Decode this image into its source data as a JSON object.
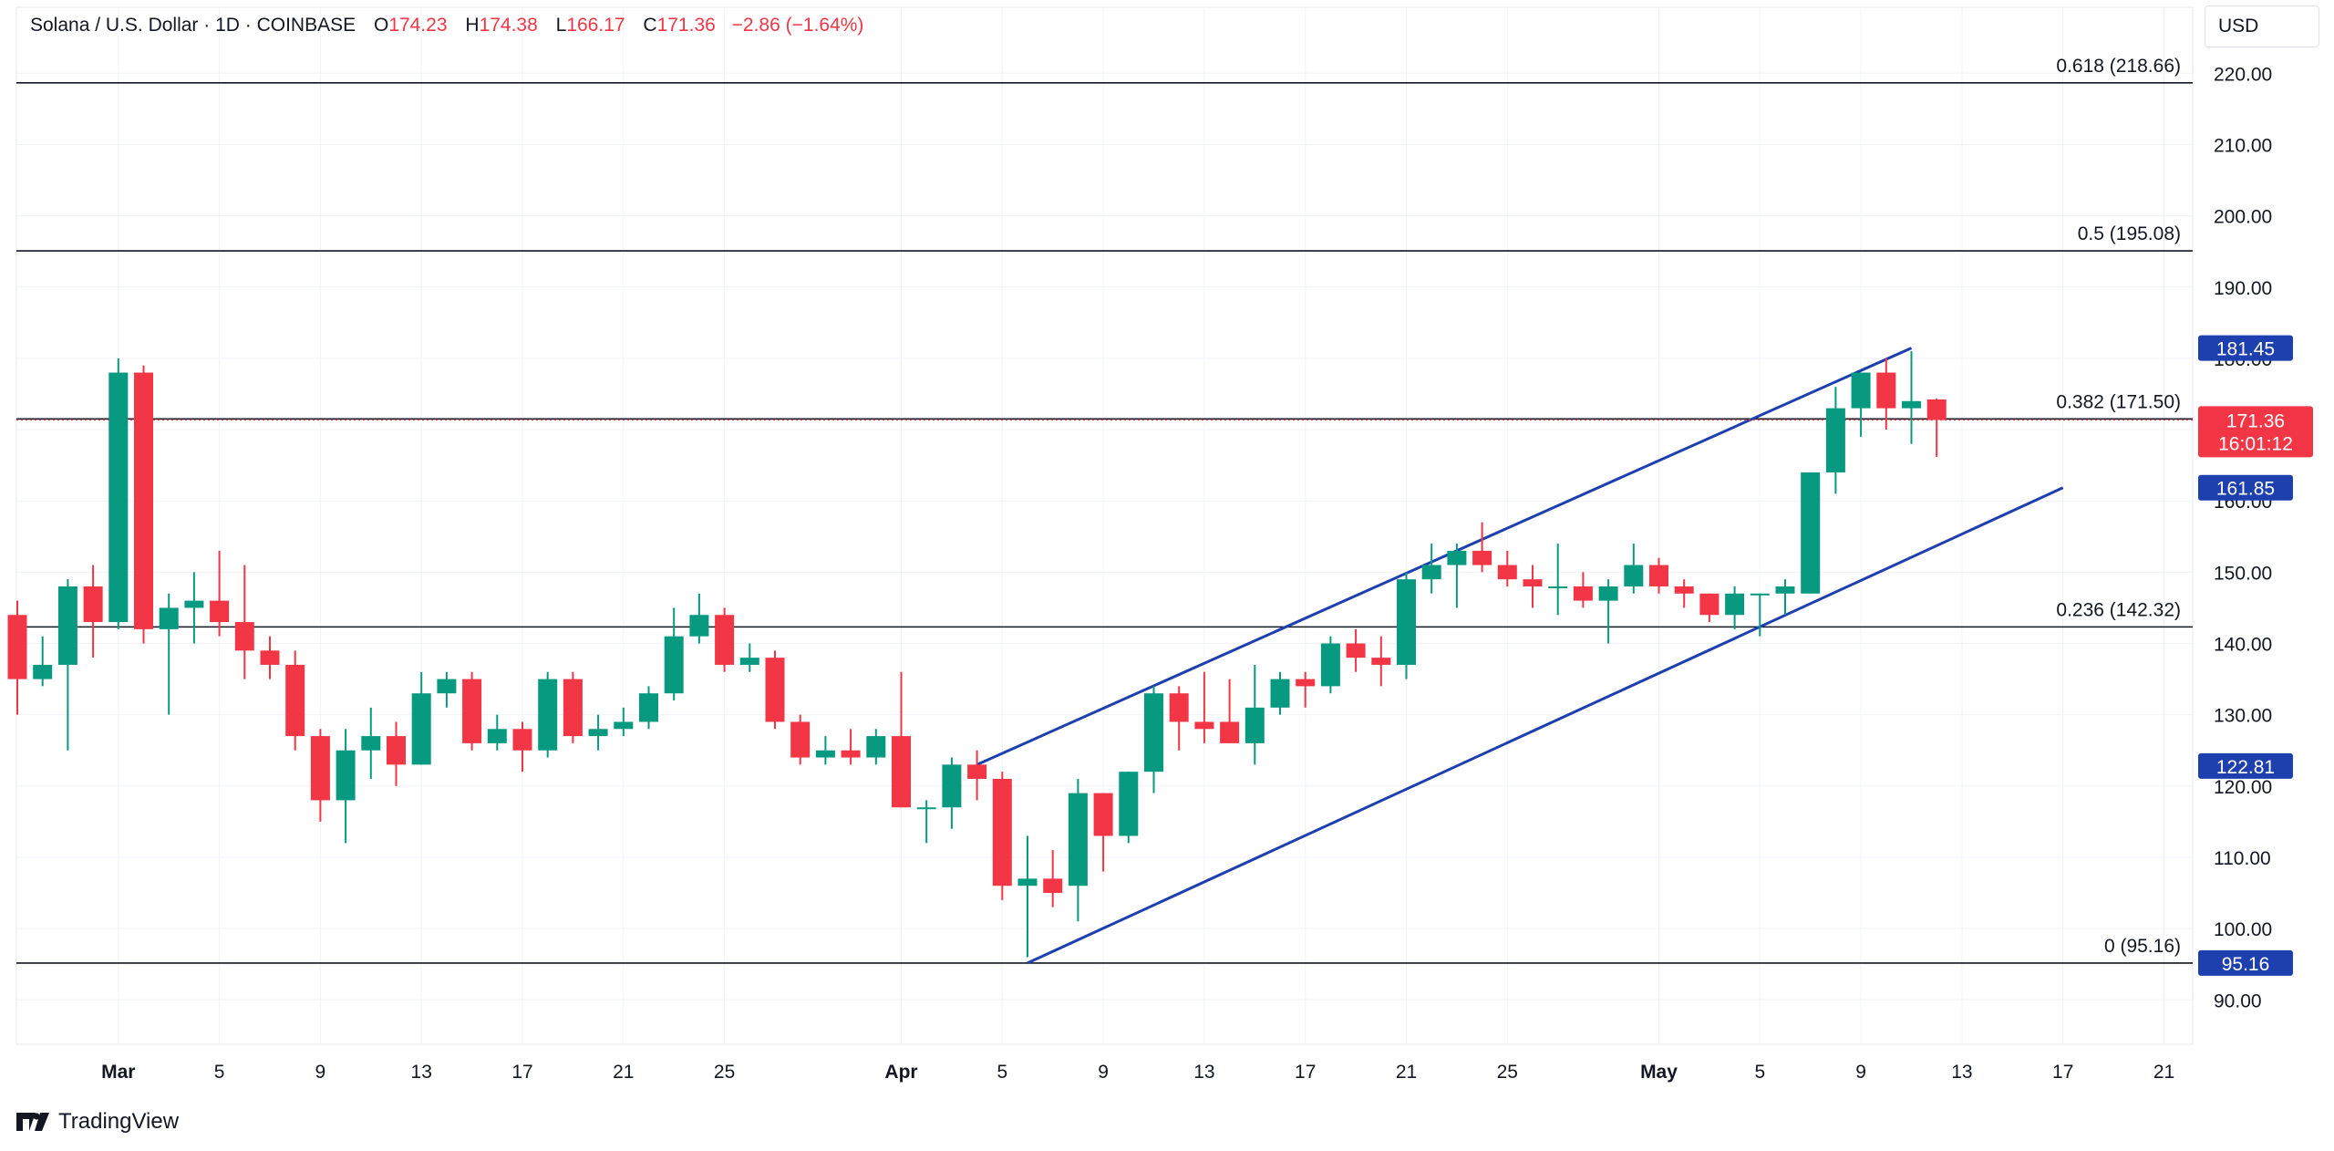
{
  "header": {
    "symbol": "Solana / U.S. Dollar · 1D · COINBASE",
    "open_label": "O",
    "open": "174.23",
    "high_label": "H",
    "high": "174.38",
    "low_label": "L",
    "low": "166.17",
    "close_label": "C",
    "close": "171.36",
    "change": "−2.86 (−1.64%)"
  },
  "currency": "USD",
  "brand": "TradingView",
  "colors": {
    "up": "#089981",
    "down": "#f23645",
    "channel": "#1e40af",
    "badge_blue": "#1e40af",
    "badge_red": "#f23645"
  },
  "chart_data": {
    "type": "candlestick",
    "ylim": [
      85,
      225
    ],
    "yticks": [
      90,
      100,
      110,
      120,
      130,
      140,
      150,
      160,
      170,
      180,
      190,
      200,
      210,
      220
    ],
    "xlim": [
      "2024-02-26",
      "2024-05-25"
    ],
    "xticks": [
      {
        "date": "2024-03-01",
        "label": "Mar",
        "bold": true
      },
      {
        "date": "2024-03-05",
        "label": "5"
      },
      {
        "date": "2024-03-09",
        "label": "9"
      },
      {
        "date": "2024-03-13",
        "label": "13"
      },
      {
        "date": "2024-03-17",
        "label": "17"
      },
      {
        "date": "2024-03-21",
        "label": "21"
      },
      {
        "date": "2024-03-25",
        "label": "25"
      },
      {
        "date": "2024-04-01",
        "label": "Apr",
        "bold": true
      },
      {
        "date": "2024-04-05",
        "label": "5"
      },
      {
        "date": "2024-04-09",
        "label": "9"
      },
      {
        "date": "2024-04-13",
        "label": "13"
      },
      {
        "date": "2024-04-17",
        "label": "17"
      },
      {
        "date": "2024-04-21",
        "label": "21"
      },
      {
        "date": "2024-04-25",
        "label": "25"
      },
      {
        "date": "2024-05-01",
        "label": "May",
        "bold": true
      },
      {
        "date": "2024-05-05",
        "label": "5"
      },
      {
        "date": "2024-05-09",
        "label": "9"
      },
      {
        "date": "2024-05-13",
        "label": "13"
      },
      {
        "date": "2024-05-17",
        "label": "17"
      },
      {
        "date": "2024-05-21",
        "label": "21"
      }
    ],
    "candles": [
      {
        "date": "2024-02-26",
        "open": 144,
        "high": 146,
        "low": 130,
        "close": 135
      },
      {
        "date": "2024-02-27",
        "open": 135,
        "high": 141,
        "low": 134,
        "close": 137
      },
      {
        "date": "2024-02-28",
        "open": 137,
        "high": 149,
        "low": 125,
        "close": 148
      },
      {
        "date": "2024-02-29",
        "open": 148,
        "high": 151,
        "low": 138,
        "close": 143
      },
      {
        "date": "2024-03-01",
        "open": 143,
        "high": 180,
        "low": 142,
        "close": 178
      },
      {
        "date": "2024-03-02",
        "open": 178,
        "high": 179,
        "low": 140,
        "close": 142
      },
      {
        "date": "2024-03-03",
        "open": 142,
        "high": 147,
        "low": 130,
        "close": 145
      },
      {
        "date": "2024-03-04",
        "open": 145,
        "high": 150,
        "low": 140,
        "close": 146
      },
      {
        "date": "2024-03-05",
        "open": 146,
        "high": 153,
        "low": 141,
        "close": 143
      },
      {
        "date": "2024-03-06",
        "open": 143,
        "high": 151,
        "low": 135,
        "close": 139
      },
      {
        "date": "2024-03-07",
        "open": 139,
        "high": 141,
        "low": 135,
        "close": 137
      },
      {
        "date": "2024-03-08",
        "open": 137,
        "high": 139,
        "low": 125,
        "close": 127
      },
      {
        "date": "2024-03-09",
        "open": 127,
        "high": 128,
        "low": 115,
        "close": 118
      },
      {
        "date": "2024-03-10",
        "open": 118,
        "high": 128,
        "low": 112,
        "close": 125
      },
      {
        "date": "2024-03-11",
        "open": 125,
        "high": 131,
        "low": 121,
        "close": 127
      },
      {
        "date": "2024-03-12",
        "open": 127,
        "high": 129,
        "low": 120,
        "close": 123
      },
      {
        "date": "2024-03-13",
        "open": 123,
        "high": 136,
        "low": 123,
        "close": 133
      },
      {
        "date": "2024-03-14",
        "open": 133,
        "high": 136,
        "low": 131,
        "close": 135
      },
      {
        "date": "2024-03-15",
        "open": 135,
        "high": 136,
        "low": 125,
        "close": 126
      },
      {
        "date": "2024-03-16",
        "open": 126,
        "high": 130,
        "low": 125,
        "close": 128
      },
      {
        "date": "2024-03-17",
        "open": 128,
        "high": 129,
        "low": 122,
        "close": 125
      },
      {
        "date": "2024-03-18",
        "open": 125,
        "high": 136,
        "low": 124,
        "close": 135
      },
      {
        "date": "2024-03-19",
        "open": 135,
        "high": 136,
        "low": 126,
        "close": 127
      },
      {
        "date": "2024-03-20",
        "open": 127,
        "high": 130,
        "low": 125,
        "close": 128
      },
      {
        "date": "2024-03-21",
        "open": 128,
        "high": 131,
        "low": 127,
        "close": 129
      },
      {
        "date": "2024-03-22",
        "open": 129,
        "high": 134,
        "low": 128,
        "close": 133
      },
      {
        "date": "2024-03-23",
        "open": 133,
        "high": 145,
        "low": 132,
        "close": 141
      },
      {
        "date": "2024-03-24",
        "open": 141,
        "high": 147,
        "low": 140,
        "close": 144
      },
      {
        "date": "2024-03-25",
        "open": 144,
        "high": 145,
        "low": 136,
        "close": 137
      },
      {
        "date": "2024-03-26",
        "open": 137,
        "high": 140,
        "low": 136,
        "close": 138
      },
      {
        "date": "2024-03-27",
        "open": 138,
        "high": 139,
        "low": 128,
        "close": 129
      },
      {
        "date": "2024-03-28",
        "open": 129,
        "high": 130,
        "low": 123,
        "close": 124
      },
      {
        "date": "2024-03-29",
        "open": 124,
        "high": 127,
        "low": 123,
        "close": 125
      },
      {
        "date": "2024-03-30",
        "open": 125,
        "high": 128,
        "low": 123,
        "close": 124
      },
      {
        "date": "2024-03-31",
        "open": 124,
        "high": 128,
        "low": 123,
        "close": 127
      },
      {
        "date": "2024-04-01",
        "open": 127,
        "high": 136,
        "low": 117,
        "close": 117
      },
      {
        "date": "2024-04-02",
        "open": 117,
        "high": 118,
        "low": 112,
        "close": 117
      },
      {
        "date": "2024-04-03",
        "open": 117,
        "high": 124,
        "low": 114,
        "close": 123
      },
      {
        "date": "2024-04-04",
        "open": 123,
        "high": 125,
        "low": 118,
        "close": 121
      },
      {
        "date": "2024-04-05",
        "open": 121,
        "high": 122,
        "low": 104,
        "close": 106
      },
      {
        "date": "2024-04-06",
        "open": 106,
        "high": 113,
        "low": 96,
        "close": 107
      },
      {
        "date": "2024-04-07",
        "open": 107,
        "high": 111,
        "low": 103,
        "close": 105
      },
      {
        "date": "2024-04-08",
        "open": 106,
        "high": 121,
        "low": 101,
        "close": 119
      },
      {
        "date": "2024-04-09",
        "open": 119,
        "high": 119,
        "low": 108,
        "close": 113
      },
      {
        "date": "2024-04-10",
        "open": 113,
        "high": 122,
        "low": 112,
        "close": 122
      },
      {
        "date": "2024-04-11",
        "open": 122,
        "high": 134,
        "low": 119,
        "close": 133
      },
      {
        "date": "2024-04-12",
        "open": 133,
        "high": 134,
        "low": 125,
        "close": 129
      },
      {
        "date": "2024-04-13",
        "open": 129,
        "high": 136,
        "low": 126,
        "close": 128
      },
      {
        "date": "2024-04-14",
        "open": 129,
        "high": 135,
        "low": 126,
        "close": 126
      },
      {
        "date": "2024-04-15",
        "open": 126,
        "high": 137,
        "low": 123,
        "close": 131
      },
      {
        "date": "2024-04-16",
        "open": 131,
        "high": 136,
        "low": 130,
        "close": 135
      },
      {
        "date": "2024-04-17",
        "open": 135,
        "high": 136,
        "low": 131,
        "close": 134
      },
      {
        "date": "2024-04-18",
        "open": 134,
        "high": 141,
        "low": 133,
        "close": 140
      },
      {
        "date": "2024-04-19",
        "open": 140,
        "high": 142,
        "low": 136,
        "close": 138
      },
      {
        "date": "2024-04-20",
        "open": 138,
        "high": 141,
        "low": 134,
        "close": 137
      },
      {
        "date": "2024-04-21",
        "open": 137,
        "high": 150,
        "low": 135,
        "close": 149
      },
      {
        "date": "2024-04-22",
        "open": 149,
        "high": 154,
        "low": 147,
        "close": 151
      },
      {
        "date": "2024-04-23",
        "open": 151,
        "high": 154,
        "low": 145,
        "close": 153
      },
      {
        "date": "2024-04-24",
        "open": 153,
        "high": 157,
        "low": 150,
        "close": 151
      },
      {
        "date": "2024-04-25",
        "open": 151,
        "high": 153,
        "low": 148,
        "close": 149
      },
      {
        "date": "2024-04-26",
        "open": 149,
        "high": 151,
        "low": 145,
        "close": 148
      },
      {
        "date": "2024-04-27",
        "open": 148,
        "high": 154,
        "low": 144,
        "close": 148
      },
      {
        "date": "2024-04-28",
        "open": 148,
        "high": 150,
        "low": 145,
        "close": 146
      },
      {
        "date": "2024-04-29",
        "open": 146,
        "high": 149,
        "low": 140,
        "close": 148
      },
      {
        "date": "2024-04-30",
        "open": 148,
        "high": 154,
        "low": 147,
        "close": 151
      },
      {
        "date": "2024-05-01",
        "open": 151,
        "high": 152,
        "low": 147,
        "close": 148
      },
      {
        "date": "2024-05-02",
        "open": 148,
        "high": 149,
        "low": 145,
        "close": 147
      },
      {
        "date": "2024-05-03",
        "open": 147,
        "high": 147,
        "low": 143,
        "close": 144
      },
      {
        "date": "2024-05-04",
        "open": 144,
        "high": 148,
        "low": 142,
        "close": 147
      },
      {
        "date": "2024-05-05",
        "open": 147,
        "high": 147,
        "low": 141,
        "close": 147
      },
      {
        "date": "2024-05-06",
        "open": 147,
        "high": 149,
        "low": 144,
        "close": 148
      },
      {
        "date": "2024-05-07",
        "open": 147,
        "high": 164,
        "low": 147,
        "close": 164
      },
      {
        "date": "2024-05-08",
        "open": 164,
        "high": 176,
        "low": 161,
        "close": 173
      },
      {
        "date": "2024-05-09",
        "open": 173,
        "high": 178,
        "low": 169,
        "close": 178
      },
      {
        "date": "2024-05-10",
        "open": 178,
        "high": 180,
        "low": 170,
        "close": 173
      },
      {
        "date": "2024-05-11",
        "open": 173,
        "high": 181,
        "low": 168,
        "close": 174
      },
      {
        "date": "2024-05-12",
        "open": 174.23,
        "high": 174.38,
        "low": 166.17,
        "close": 171.36
      }
    ],
    "fib_levels": [
      {
        "label": "0.618 (218.66)",
        "value": 218.66
      },
      {
        "label": "0.5 (195.08)",
        "value": 195.08
      },
      {
        "label": "0.382 (171.50)",
        "value": 171.5
      },
      {
        "label": "0.236 (142.32)",
        "value": 142.32
      },
      {
        "label": "0 (95.16)",
        "value": 95.16
      }
    ],
    "channel": {
      "upper": {
        "from": {
          "date": "2024-04-04",
          "value": 123
        },
        "to": {
          "date": "2024-05-11",
          "value": 181.45
        }
      },
      "lower": {
        "from": {
          "date": "2024-04-06",
          "value": 95.16
        },
        "to": {
          "date": "2024-05-17",
          "value": 161.85
        }
      }
    },
    "price_badges": [
      {
        "value": 181.45,
        "label": "181.45",
        "color": "blue"
      },
      {
        "value": 161.85,
        "label": "161.85",
        "color": "blue"
      },
      {
        "value": 122.81,
        "label": "122.81",
        "color": "blue"
      },
      {
        "value": 95.16,
        "label": "95.16",
        "color": "blue"
      }
    ],
    "last_price": {
      "value": 171.36,
      "label": "171.36",
      "countdown": "16:01:12"
    }
  }
}
